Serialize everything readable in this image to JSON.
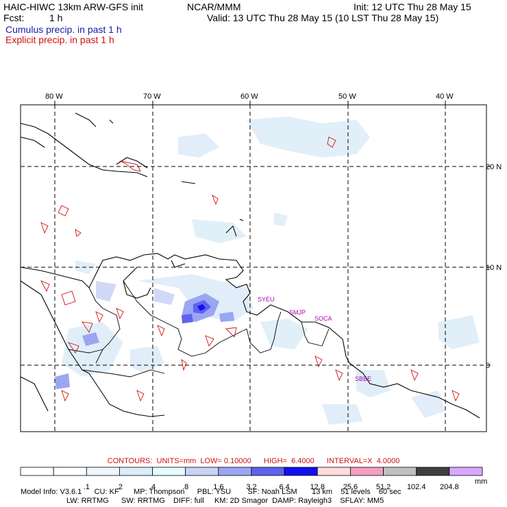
{
  "header": {
    "model_title": "HAIC-HIWC 13km ARW-GFS init",
    "org": "NCAR/MMM",
    "init": "Init: 12 UTC Thu 28 May 15",
    "fcst_label": "Fcst:",
    "fcst_value": "1 h",
    "valid": "Valid: 13 UTC Thu 28 May 15 (10 LST Thu 28 May 15)",
    "cumulus": "Cumulus precip. in past 1 h",
    "explicit": "Explicit precip. in past 1 h"
  },
  "map": {
    "lon_labels": [
      "80 W",
      "70 W",
      "60 W",
      "50 W",
      "40 W"
    ],
    "lat_labels": [
      "20 N",
      "10 N",
      "0"
    ],
    "stations": [
      "SYEU",
      "SMJP",
      "SOCA",
      "SBBE"
    ]
  },
  "contours": {
    "text": "CONTOURS:  UNITS=mm  LOW= 0.10000      HIGH=  6.4000      INTERVAL=X  4.0000"
  },
  "colorbar": {
    "colors": [
      "#ffffff",
      "#ffffff",
      "#eef5fb",
      "#dcecf8",
      "#e6fbfb",
      "#c9d3f5",
      "#9aa6f2",
      "#5f62ec",
      "#1010f0",
      "#ffdcdc",
      "#f2a0c0",
      "#c0c0c0",
      "#404040",
      "#d8a8ff"
    ],
    "labels": [
      ".1",
      ".2",
      ".4",
      ".8",
      "1.6",
      "3.2",
      "6.4",
      "12.8",
      "25.6",
      "51.2",
      "102.4",
      "204.8"
    ],
    "units": "mm"
  },
  "footer": {
    "line1": "Model Info: V3.6.1      CU: KF       MP: Thompson      PBL: YSU        SF: Noah LSM       13 km    51 levels    60 sec",
    "line2": "LW: RRTMG      SW: RRTMG    DIFF: full     KM: 2D Smagor  DAMP: Rayleigh3    SFLAY: MM5"
  }
}
